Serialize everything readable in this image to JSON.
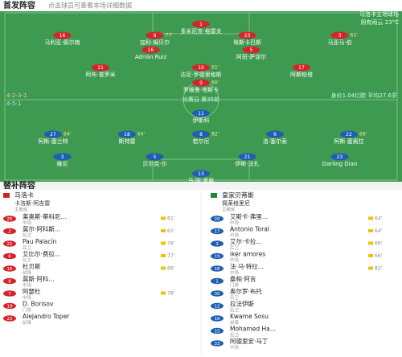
{
  "header": {
    "title": "首发阵容",
    "subtitle": "点击球员可查看本场详细数据",
    "venue": "马洛卡主场球场",
    "weather": "阴有雨云 23°C"
  },
  "home": {
    "formation": "4-2-3-1",
    "rows": [
      [
        {
          "number": "1",
          "name": "多米尼克·格雷夫"
        }
      ],
      [
        {
          "number": "16",
          "name": "马利亚·佩尔南"
        },
        {
          "number": "6",
          "name": "加利·姆贝尔",
          "minute": "77'"
        },
        {
          "number": "23",
          "name": "埃斯卡巴斯"
        },
        {
          "number": "3",
          "name": "马亚马·伯",
          "minute": "61'"
        }
      ],
      [
        {
          "number": "16",
          "name": "Adrián Ruiz"
        },
        {
          "number": "5",
          "name": "阿班·萨谬尔"
        }
      ],
      [
        {
          "number": "11",
          "name": "阿布·普罗米"
        },
        {
          "number": "10",
          "name": "达尼·罗德里格斯",
          "minute": "61'"
        },
        {
          "number": "17",
          "name": "阿斯帕塔"
        }
      ],
      [
        {
          "number": "9",
          "name": "罗维鲁·塔斯卡",
          "minute": "66'"
        }
      ]
    ]
  },
  "info": {
    "center": "比赛日 第35轮",
    "right": "身价1.04亿欧 平均27.6岁"
  },
  "away": {
    "formation": "4-5-1",
    "rows": [
      [
        {
          "number": "11",
          "name": "伊斯科"
        }
      ],
      [
        {
          "number": "27",
          "name": "阿斯·塞兰特",
          "minute": "64'"
        },
        {
          "number": "18",
          "name": "斯特雷",
          "minute": "64'"
        },
        {
          "number": "8",
          "name": "若尔尼",
          "minute": "82'"
        },
        {
          "number": "6",
          "name": "洛·塞尔索"
        },
        {
          "number": "22",
          "name": "阿斯·塞奥拉",
          "minute": "66'"
        }
      ],
      [
        {
          "number": "3",
          "name": "维尼"
        },
        {
          "number": "5",
          "name": "贝尔克·尔"
        },
        {
          "number": "21",
          "name": "伊斯·法扎"
        },
        {
          "number": "23",
          "name": "Darling Dian"
        }
      ],
      [
        {
          "number": "13",
          "name": "马·阿·里奥"
        }
      ]
    ]
  },
  "bench": {
    "title": "替补阵容",
    "home": {
      "team": "马洛卡",
      "coach": {
        "name": "卡洛斯·阿吉雷",
        "role": "主教练"
      },
      "players": [
        {
          "number": "25",
          "name": "莱奥斯·蒂科尼...",
          "position": "中场",
          "minute": "61'"
        },
        {
          "number": "2",
          "name": "莫尔·阿科斯...",
          "position": "后卫",
          "minute": "61'"
        },
        {
          "number": "21",
          "name": "Pau Palacín",
          "position": "后卫",
          "minute": "76'"
        },
        {
          "number": "6",
          "name": "艾比尔·费拉...",
          "position": "后卫",
          "minute": "77'"
        },
        {
          "number": "16",
          "name": "杜贝斯",
          "position": "前锋",
          "minute": "66'"
        },
        {
          "number": "8",
          "name": "莫斯·阿科...",
          "position": "中场"
        },
        {
          "number": "7",
          "name": "阿瑟杜",
          "position": "中场",
          "minute": "78'"
        },
        {
          "number": "19",
          "name": "D. Borisov",
          "position": "门将"
        },
        {
          "number": "22",
          "name": "Alejandro Toper",
          "position": "前锋"
        }
      ]
    },
    "away": {
      "team": "皇家贝蒂斯",
      "coach": {
        "name": "佩莱格里尼",
        "role": "主教练"
      },
      "players": [
        {
          "number": "20",
          "name": "艾斯卡·弗里...",
          "position": "中场",
          "minute": "64'"
        },
        {
          "number": "17",
          "name": "Antonio Toral",
          "position": "中场",
          "minute": "64'"
        },
        {
          "number": "3",
          "name": "艾尔·卡拉...",
          "position": "后卫",
          "minute": "66'"
        },
        {
          "number": "19",
          "name": "iker amores",
          "position": "中场",
          "minute": "66'"
        },
        {
          "number": "18",
          "name": "法·马·特拉...",
          "position": "中场",
          "minute": "82'"
        },
        {
          "number": "1",
          "name": "桑帕·阿吉",
          "position": "门将"
        },
        {
          "number": "30",
          "name": "奥尔罗·布托",
          "position": "后卫"
        },
        {
          "number": "12",
          "name": "拉法伊斯",
          "position": "后卫"
        },
        {
          "number": "16",
          "name": "Kwame Sosu",
          "position": "前锋"
        },
        {
          "number": "15",
          "name": "Mohamed Ha...",
          "position": "后卫"
        },
        {
          "number": "33",
          "name": "阿德里安·马丁",
          "position": "中场"
        }
      ]
    }
  }
}
